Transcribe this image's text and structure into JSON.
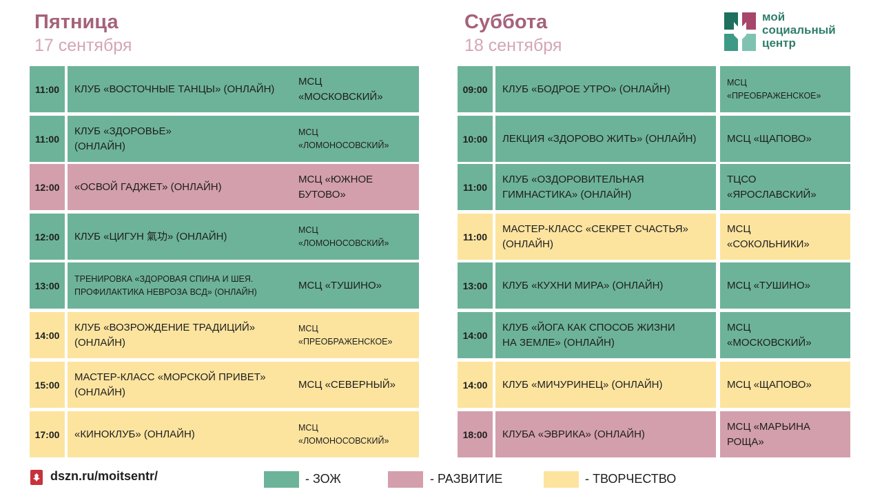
{
  "left": {
    "title": "Пятница",
    "date": "17 сентября",
    "rows": [
      {
        "time": "11:00",
        "event": "КЛУБ «ВОСТОЧНЫЕ  ТАНЦЫ» (ОНЛАЙН)",
        "location": "МСЦ\n«МОСКОВСКИЙ»",
        "category": "zoz"
      },
      {
        "time": "11:00",
        "event": "КЛУБ «ЗДОРОВЬЕ»\n(ОНЛАЙН)",
        "location": "МСЦ\n«ЛОМОНОСОВСКИЙ»",
        "category": "zoz"
      },
      {
        "time": "12:00",
        "event": "«ОСВОЙ ГАДЖЕТ»  (ОНЛАЙН)",
        "location": "МСЦ «ЮЖНОЕ\nБУТОВО»",
        "category": "razv"
      },
      {
        "time": "12:00",
        "event": "КЛУБ «ЦИГУН 氣功» (ОНЛАЙН)",
        "location": "МСЦ\n«ЛОМОНОСОВСКИЙ»",
        "category": "zoz"
      },
      {
        "time": "13:00",
        "event": "ТРЕНИРОВКА «ЗДОРОВАЯ СПИНА И ШЕЯ.\nПРОФИЛАКТИКА НЕВРОЗА ВСД» (ОНЛАЙН)",
        "location": "МСЦ «ТУШИНО»",
        "category": "zoz"
      },
      {
        "time": "14:00",
        "event": "КЛУБ «ВОЗРОЖДЕНИЕ  ТРАДИЦИЙ»\n(ОНЛАЙН)",
        "location": "МСЦ\n«ПРЕОБРАЖЕНСКОЕ»",
        "category": "tvor"
      },
      {
        "time": "15:00",
        "event": "МАСТЕР-КЛАСС  «МОРСКОЙ ПРИВЕТ»\n(ОНЛАЙН)",
        "location": "МСЦ «СЕВЕРНЫЙ»",
        "category": "tvor"
      },
      {
        "time": "17:00",
        "event": "«КИНОКЛУБ»  (ОНЛАЙН)",
        "location": "МСЦ\n«ЛОМОНОСОВСКИЙ»",
        "category": "tvor"
      }
    ]
  },
  "right": {
    "title": "Суббота",
    "date": "18 сентября",
    "rows": [
      {
        "time": "09:00",
        "event": "КЛУБ «БОДРОЕ УТРО» (ОНЛАЙН)",
        "location": "МСЦ\n«ПРЕОБРАЖЕНСКОЕ»",
        "category": "zoz"
      },
      {
        "time": "10:00",
        "event": "ЛЕКЦИЯ «ЗДОРОВО ЖИТЬ» (ОНЛАЙН)",
        "location": "МСЦ «ЩАПОВО»",
        "category": "zoz"
      },
      {
        "time": "11:00",
        "event": "КЛУБ «ОЗДОРОВИТЕЛЬНАЯ\nГИМНАСТИКА» (ОНЛАЙН)",
        "location": "ТЦСО\n«ЯРОСЛАВСКИЙ»",
        "category": "zoz"
      },
      {
        "time": "11:00",
        "event": "МАСТЕР-КЛАСС «СЕКРЕТ СЧАСТЬЯ»\n(ОНЛАЙН)",
        "location": "МСЦ\n«СОКОЛЬНИКИ»",
        "category": "tvor"
      },
      {
        "time": "13:00",
        "event": "КЛУБ «КУХНИ МИРА» (ОНЛАЙН)",
        "location": "МСЦ «ТУШИНО»",
        "category": "zoz"
      },
      {
        "time": "14:00",
        "event": "КЛУБ «ЙОГА КАК СПОСОБ ЖИЗНИ\nНА ЗЕМЛЕ» (ОНЛАЙН)",
        "location": "МСЦ\n«МОСКОВСКИЙ»",
        "category": "zoz"
      },
      {
        "time": "14:00",
        "event": "КЛУБ «МИЧУРИНЕЦ» (ОНЛАЙН)",
        "location": "МСЦ «ЩАПОВО»",
        "category": "tvor"
      },
      {
        "time": "18:00",
        "event": "КЛУБА «ЭВРИКА» (ОНЛАЙН)",
        "location": "МСЦ «МАРЬИНА\nРОЩА»",
        "category": "razv"
      }
    ]
  },
  "logo": {
    "line1": "мой",
    "line2": "социальный",
    "line3": "центр"
  },
  "footer": {
    "link": "dszn.ru/moitsentr/"
  },
  "legend": [
    {
      "label": "- ЗОЖ",
      "color": "#6db39a"
    },
    {
      "label": "- РАЗВИТИЕ",
      "color": "#d39fac"
    },
    {
      "label": "- ТВОРЧЕСТВО",
      "color": "#fce49f"
    }
  ]
}
